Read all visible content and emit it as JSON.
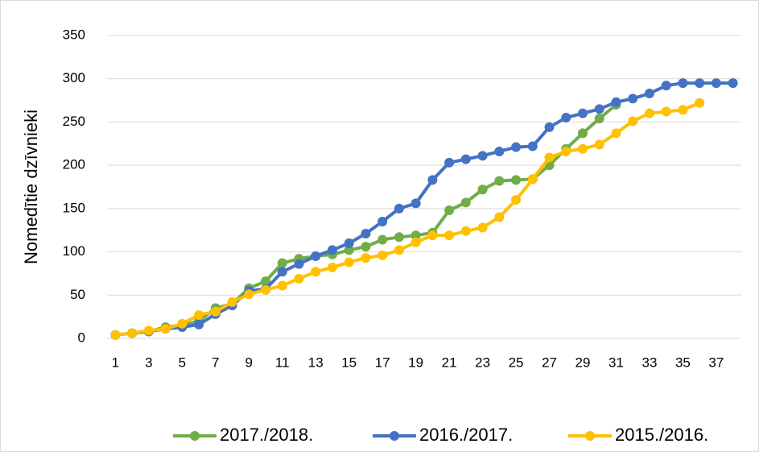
{
  "chart_data": {
    "type": "line",
    "y_label": "Nomedītie dzīvnieki",
    "categories": [
      "1",
      null,
      "3",
      null,
      "5",
      null,
      "7",
      null,
      "9",
      null,
      "11",
      null,
      "13",
      null,
      "15",
      null,
      "17",
      null,
      "19",
      null,
      "21",
      null,
      "23",
      null,
      "25",
      null,
      "27",
      null,
      "29",
      null,
      "31",
      null,
      "33",
      null,
      "35",
      null,
      "37",
      null
    ],
    "series": [
      {
        "name": "2017./2018.",
        "color": "#70ad47",
        "values": [
          4,
          6,
          8,
          13,
          15,
          20,
          35,
          40,
          58,
          66,
          87,
          92,
          95,
          97,
          102,
          106,
          114,
          117,
          119,
          122,
          148,
          157,
          172,
          182,
          183,
          184,
          200,
          219,
          237,
          254,
          270,
          null,
          null,
          null,
          null,
          null,
          null,
          null
        ]
      },
      {
        "name": "2016./2017.",
        "color": "#4472c4",
        "values": [
          4,
          6,
          8,
          11,
          13,
          16,
          28,
          38,
          55,
          57,
          77,
          86,
          95,
          102,
          110,
          121,
          135,
          150,
          156,
          183,
          203,
          207,
          211,
          216,
          221,
          222,
          244,
          255,
          260,
          265,
          273,
          277,
          283,
          292,
          295,
          295,
          295,
          295
        ]
      },
      {
        "name": "2015./2016.",
        "color": "#ffc000",
        "values": [
          4,
          6,
          9,
          11,
          17,
          27,
          31,
          42,
          51,
          56,
          61,
          69,
          77,
          82,
          88,
          93,
          96,
          102,
          111,
          119,
          119,
          124,
          128,
          140,
          160,
          184,
          209,
          216,
          219,
          224,
          237,
          251,
          260,
          262,
          264,
          272,
          null,
          null
        ]
      }
    ],
    "ylim": [
      0,
      350
    ],
    "yticks": [
      0,
      50,
      100,
      150,
      200,
      250,
      300,
      350
    ],
    "grid": true,
    "legend": "bottom"
  }
}
